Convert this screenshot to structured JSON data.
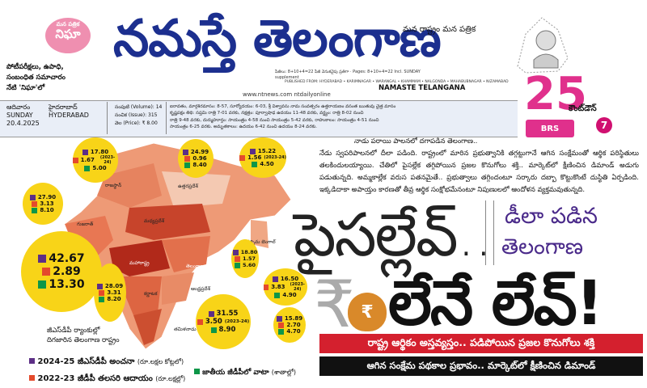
{
  "masthead": {
    "badge_small": "మన పత్రిక",
    "badge": "నిఘా",
    "tagline": [
      "పోటీపరీక్షలు, ఉపాధి,",
      "సంబంధిత సమాచారం",
      "నేటి 'నిఘా'లో"
    ],
    "title": "నమస్తే తెలంగాణ",
    "mana": "మన రాష్ట్రం  మన పత్రిక",
    "subinfo": "పేజీలు: 8+10+4=22 పేజీ వెనుకవైపు ప్రతిగా · Pages: 8+10+4=22 Incl. SUNDAY supplement",
    "published": "PUBLISHED FROM: HYDERABAD • KARIMNAGAR • WARANGAL • KHAMMAM • NALGONDA • MAHABUBNAGAR • NIZAMABAD",
    "url": "www.ntnews.com  ntdailyonline",
    "english_name": "NAMASTE TELANGANA",
    "countdown_number": "25",
    "countdown_label": "కౌంట్‌డౌన్",
    "countdown_days": "7",
    "brs": "BRS"
  },
  "dateline": {
    "day_te": "ఆదివారం",
    "day_en": "SUNDAY",
    "date": "20.4.2025",
    "city_te": "హైదరాబాద్",
    "city_en": "HYDERABAD",
    "volume": "సంపుటి (Volume): 14",
    "issue": "సంచిక (Issue): 315",
    "price": "వెల (Price): ₹ 8.00",
    "schedule": [
      "ఐరావతం, మార్గశిరమాసం: 8-57, సూర్యోదయం: 6-03, శ్రీ విశ్వావసు నామ సంవత్సరం ఉత్తరాయణం వసంత ఋతువు చైత్ర మాసం",
      "కృష్ణపక్షం తిథి: సప్తమి రాత్రి 7-01 వరకు, నక్షత్రం: పూర్వాషాఢ ఉదయం 11-48 వరకు, వర్జ్యం: రాత్రి 8-02 నుంచి",
      "రాత్రి 9-48 వరకు, దుర్ముహూర్తం: సాయంత్రం 4-58 నుంచి సాయంత్రం 5-42 వరకు, రాహుకాలం: సాయంత్రం 4-51 నుంచి",
      "సాయంత్రం 6-25 వరకు. అమృతకాలం: ఉదయం 6-42 నుంచి ఉదయం 8-24 వరకు."
    ]
  },
  "map": {
    "bubbles": [
      {
        "p": "17.80",
        "r": "1.67",
        "r_note": "(2023-24)",
        "g": "5.00"
      },
      {
        "p": "24.99",
        "r": "0.96",
        "g": "8.40"
      },
      {
        "p": "15.22",
        "r": "1.56",
        "r_note": "(2023-24)",
        "g": "4.50"
      },
      {
        "p": "27.90",
        "r": "3.13",
        "g": "8.10"
      },
      {
        "p": "42.67",
        "r": "2.89",
        "g": "13.30"
      },
      {
        "p": "18.80",
        "r": "1.57",
        "g": "5.60"
      },
      {
        "p": "28.09",
        "r": "3.31",
        "g": "8.20"
      },
      {
        "p": "31.55",
        "r": "3.50",
        "r_note": "(2023-24)",
        "g": "8.90"
      },
      {
        "p": "16.50",
        "r": "3.83",
        "r_note": "(2023-24)",
        "g": "4.90"
      },
      {
        "p": "15.89",
        "r": "2.70",
        "g": "4.70"
      }
    ],
    "state_labels": [
      "రాజస్థాన్",
      "ఉత్తరప్రదేశ్",
      "గుజరాత్",
      "మధ్యప్రదేశ్",
      "పశ్చిమ బెంగాల్",
      "మహారాష్ట్ర",
      "తెలంగాణ",
      "కర్ణాటక",
      "తమిళనాడు",
      "ఆంధ్రప్రదేశ్"
    ],
    "caption": [
      "జీఎస్‌డీపీ ర్యాంకుల్లో",
      "దిగజారిన తెలంగాణ రాష్ట్రం"
    ],
    "colors": {
      "purple": "#5d2f86",
      "red": "#e44a2c",
      "green": "#0d9648",
      "bubble": "#f8d418"
    }
  },
  "legend": {
    "purple_label": "2024-25 జీఎస్‌డీపీ అంచనా",
    "purple_unit": "(రూ.లక్షల కోట్లలో)",
    "red_label": "2022-23 జీడీపీ తలసరి ఆదాయం",
    "red_unit": "(రూ.లక్షల్లో)",
    "green_label": "జాతీయ జీడీపీలో వాటా",
    "green_unit": "(శాతాల్లో)"
  },
  "story": {
    "kicker": "నాడు పరాయి పాలనలో దగాపడిన తెలంగాణ..",
    "body": "నేడు స్వపరిపాలనలో దీలా పడింది. రాష్ట్రంలో మారిన ప్రభుత్వానికి తగ్గట్టుగానే ఆగిన సంక్షేమంతో ఆర్థిక పరిస్థితులు తలకిందులయ్యాయి. చేతిలో పైసల్లేక తగ్గిపోయిన ప్రజల కొనుగోలు శక్తి.. మార్కెట్‌లో క్షీణించిన డిమాండ్‌ అడుగు పడుతున్నది. అమ్మకాల్లేక వరుస పతనమైతే.. ప్రభుత్వాలు తగ్గిందంటూ సర్కారు దబ్బా కొట్టుకొంటే దుస్థితి ఏర్పడింది. ఇక్కడిదాకా అపాయ్తం కారణతో తీవ్ర ఆర్థిక సంక్షోభమేనంటూ నిపుణులలో ఆందోళన వ్యక్తమవుతున్నది.",
    "headline1": "పైసల్లేవ్..",
    "side_line1": "డీలా పడిన",
    "side_line2": "తెలంగాణ",
    "rupee": "₹",
    "bag": "₹",
    "headline2": "లేనే లేవ్!",
    "banner1": "రాష్ట్ర ఆర్థికం అస్తవ్యస్తం.. పడిపోయిన ప్రజల కొనుగోలు శక్తి",
    "banner2": "ఆగిన సంక్షేమ పథకాల ప్రభావం.. మార్కెట్‌లో క్షీణించిన డిమాండ్"
  }
}
